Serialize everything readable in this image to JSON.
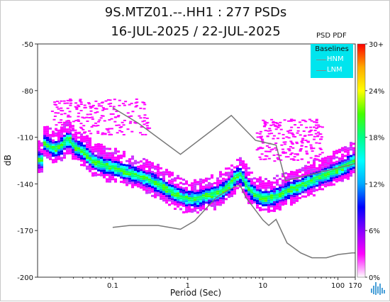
{
  "title": {
    "line1": "9S.MTZ01.--.HH1 : 277 PSDs",
    "line2": "16-JUL-2025 / 22-JUL-2025"
  },
  "legend": {
    "title": "Baselines",
    "items": [
      {
        "label": "HNM",
        "color": "#888888"
      },
      {
        "label": "LNM",
        "color": "#888888"
      }
    ]
  },
  "colorbar": {
    "title": "PSD PDF",
    "tick_labels": [
      "30+",
      "24%",
      "18%",
      "12%",
      "6%",
      "0%"
    ],
    "ticks": [
      30,
      24,
      18,
      12,
      6,
      0
    ],
    "colors": [
      "#ffffff",
      "#ff00ff",
      "#8800ff",
      "#0000ff",
      "#00aaff",
      "#00ffff",
      "#00ff88",
      "#44ff00",
      "#ffff00",
      "#ffaa00",
      "#ff0000"
    ]
  },
  "chart_data": {
    "type": "heatmap",
    "title": "9S.MTZ01.--.HH1 : 277 PSDs",
    "subtitle": "16-JUL-2025 / 22-JUL-2025",
    "xlabel": "Period (Sec)",
    "ylabel": "dB",
    "x_scale": "log",
    "xlim": [
      0.01,
      170
    ],
    "ylim": [
      -200,
      -50
    ],
    "x_ticks": [
      0.1,
      1,
      10,
      100,
      170
    ],
    "x_tick_labels": [
      "0.1",
      "1",
      "10",
      "100",
      "170"
    ],
    "y_ticks": [
      -50,
      -80,
      -110,
      -140,
      -170,
      -200
    ],
    "y_tick_labels": [
      "-50",
      "-80",
      "-110",
      "-140",
      "-170",
      "-200"
    ],
    "grid": false,
    "legend_placement": "top-right",
    "series": [
      {
        "name": "HNM",
        "x": [
          0.1,
          0.22,
          0.8,
          3.8,
          8,
          15,
          20,
          170
        ],
        "y": [
          -91,
          -101,
          -121,
          -96,
          -112,
          -115,
          -138,
          -127
        ]
      },
      {
        "name": "LNM",
        "x": [
          0.1,
          0.17,
          0.4,
          0.8,
          1.24,
          2.4,
          4.3,
          5.0,
          6.0,
          10,
          12,
          15,
          21,
          32,
          45,
          70,
          101,
          154,
          170
        ],
        "y": [
          -168,
          -166.7,
          -166.7,
          -169.2,
          -163.7,
          -148.6,
          -141.5,
          -141.1,
          -149.0,
          -163.2,
          -166.7,
          -162.8,
          -178.0,
          -184.4,
          -187.5,
          -187.5,
          -185.4,
          -184.4,
          -184.4
        ]
      }
    ],
    "mode": {
      "x": [
        0.0117,
        0.016,
        0.02,
        0.025,
        0.03,
        0.04,
        0.05,
        0.06,
        0.08,
        0.1,
        0.15,
        0.2,
        0.3,
        0.4,
        0.6,
        0.8,
        1.0,
        1.3,
        1.7,
        2.2,
        2.8,
        3.5,
        4.2,
        5.0,
        5.5,
        6.2,
        7.0,
        8.0,
        10,
        13,
        17,
        20,
        30,
        50,
        80,
        120,
        170
      ],
      "y": [
        -113,
        -117,
        -115,
        -110,
        -116,
        -119,
        -124,
        -126,
        -128,
        -129,
        -132,
        -134,
        -137,
        -140,
        -145,
        -148,
        -149,
        -149,
        -147,
        -146,
        -144,
        -140,
        -135,
        -133,
        -138,
        -142,
        -145,
        -147,
        -149,
        -148,
        -146,
        -144,
        -141,
        -136,
        -132,
        -128,
        -124
      ]
    },
    "scatter_bands": [
      {
        "x_range": [
          0.015,
          0.3
        ],
        "y_range": [
          -85,
          -108
        ]
      },
      {
        "x_range": [
          8,
          60
        ],
        "y_range": [
          -98,
          -125
        ]
      }
    ]
  }
}
